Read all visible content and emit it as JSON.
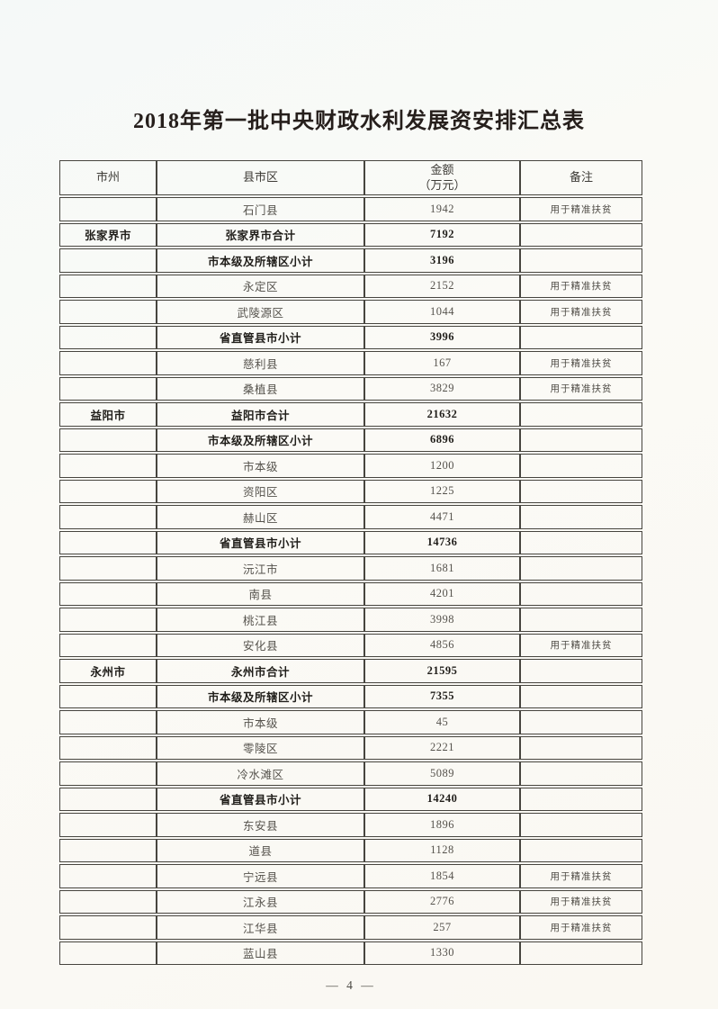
{
  "doc": {
    "title": "2018年第一批中央财政水利发展资安排汇总表",
    "page_footer": "— 4 —"
  },
  "colors": {
    "paper": "#faf9f4",
    "table_border": "#47453f",
    "body_text": "#55524c",
    "emphasis_text": "#201e1a",
    "title_text": "#261f1c"
  },
  "table": {
    "columns": [
      {
        "label": "市州"
      },
      {
        "label": "县市区"
      },
      {
        "label": "金额",
        "sublabel": "（万元）"
      },
      {
        "label": "备注"
      }
    ],
    "rows": [
      {
        "city": "",
        "county": "石门县",
        "amount": "1942",
        "remark": "用于精准扶贫",
        "bold": false
      },
      {
        "city": "张家界市",
        "county": "张家界市合计",
        "amount": "7192",
        "remark": "",
        "bold": true
      },
      {
        "city": "",
        "county": "市本级及所辖区小计",
        "amount": "3196",
        "remark": "",
        "bold": true
      },
      {
        "city": "",
        "county": "永定区",
        "amount": "2152",
        "remark": "用于精准扶贫",
        "bold": false
      },
      {
        "city": "",
        "county": "武陵源区",
        "amount": "1044",
        "remark": "用于精准扶贫",
        "bold": false
      },
      {
        "city": "",
        "county": "省直管县市小计",
        "amount": "3996",
        "remark": "",
        "bold": true
      },
      {
        "city": "",
        "county": "慈利县",
        "amount": "167",
        "remark": "用于精准扶贫",
        "bold": false
      },
      {
        "city": "",
        "county": "桑植县",
        "amount": "3829",
        "remark": "用于精准扶贫",
        "bold": false
      },
      {
        "city": "益阳市",
        "county": "益阳市合计",
        "amount": "21632",
        "remark": "",
        "bold": true
      },
      {
        "city": "",
        "county": "市本级及所辖区小计",
        "amount": "6896",
        "remark": "",
        "bold": true
      },
      {
        "city": "",
        "county": "市本级",
        "amount": "1200",
        "remark": "",
        "bold": false
      },
      {
        "city": "",
        "county": "资阳区",
        "amount": "1225",
        "remark": "",
        "bold": false
      },
      {
        "city": "",
        "county": "赫山区",
        "amount": "4471",
        "remark": "",
        "bold": false
      },
      {
        "city": "",
        "county": "省直管县市小计",
        "amount": "14736",
        "remark": "",
        "bold": true
      },
      {
        "city": "",
        "county": "沅江市",
        "amount": "1681",
        "remark": "",
        "bold": false
      },
      {
        "city": "",
        "county": "南县",
        "amount": "4201",
        "remark": "",
        "bold": false
      },
      {
        "city": "",
        "county": "桃江县",
        "amount": "3998",
        "remark": "",
        "bold": false
      },
      {
        "city": "",
        "county": "安化县",
        "amount": "4856",
        "remark": "用于精准扶贫",
        "bold": false
      },
      {
        "city": "永州市",
        "county": "永州市合计",
        "amount": "21595",
        "remark": "",
        "bold": true
      },
      {
        "city": "",
        "county": "市本级及所辖区小计",
        "amount": "7355",
        "remark": "",
        "bold": true
      },
      {
        "city": "",
        "county": "市本级",
        "amount": "45",
        "remark": "",
        "bold": false
      },
      {
        "city": "",
        "county": "零陵区",
        "amount": "2221",
        "remark": "",
        "bold": false
      },
      {
        "city": "",
        "county": "冷水滩区",
        "amount": "5089",
        "remark": "",
        "bold": false
      },
      {
        "city": "",
        "county": "省直管县市小计",
        "amount": "14240",
        "remark": "",
        "bold": true
      },
      {
        "city": "",
        "county": "东安县",
        "amount": "1896",
        "remark": "",
        "bold": false
      },
      {
        "city": "",
        "county": "道县",
        "amount": "1128",
        "remark": "",
        "bold": false
      },
      {
        "city": "",
        "county": "宁远县",
        "amount": "1854",
        "remark": "用于精准扶贫",
        "bold": false
      },
      {
        "city": "",
        "county": "江永县",
        "amount": "2776",
        "remark": "用于精准扶贫",
        "bold": false
      },
      {
        "city": "",
        "county": "江华县",
        "amount": "257",
        "remark": "用于精准扶贫",
        "bold": false
      },
      {
        "city": "",
        "county": "蓝山县",
        "amount": "1330",
        "remark": "",
        "bold": false
      }
    ]
  }
}
